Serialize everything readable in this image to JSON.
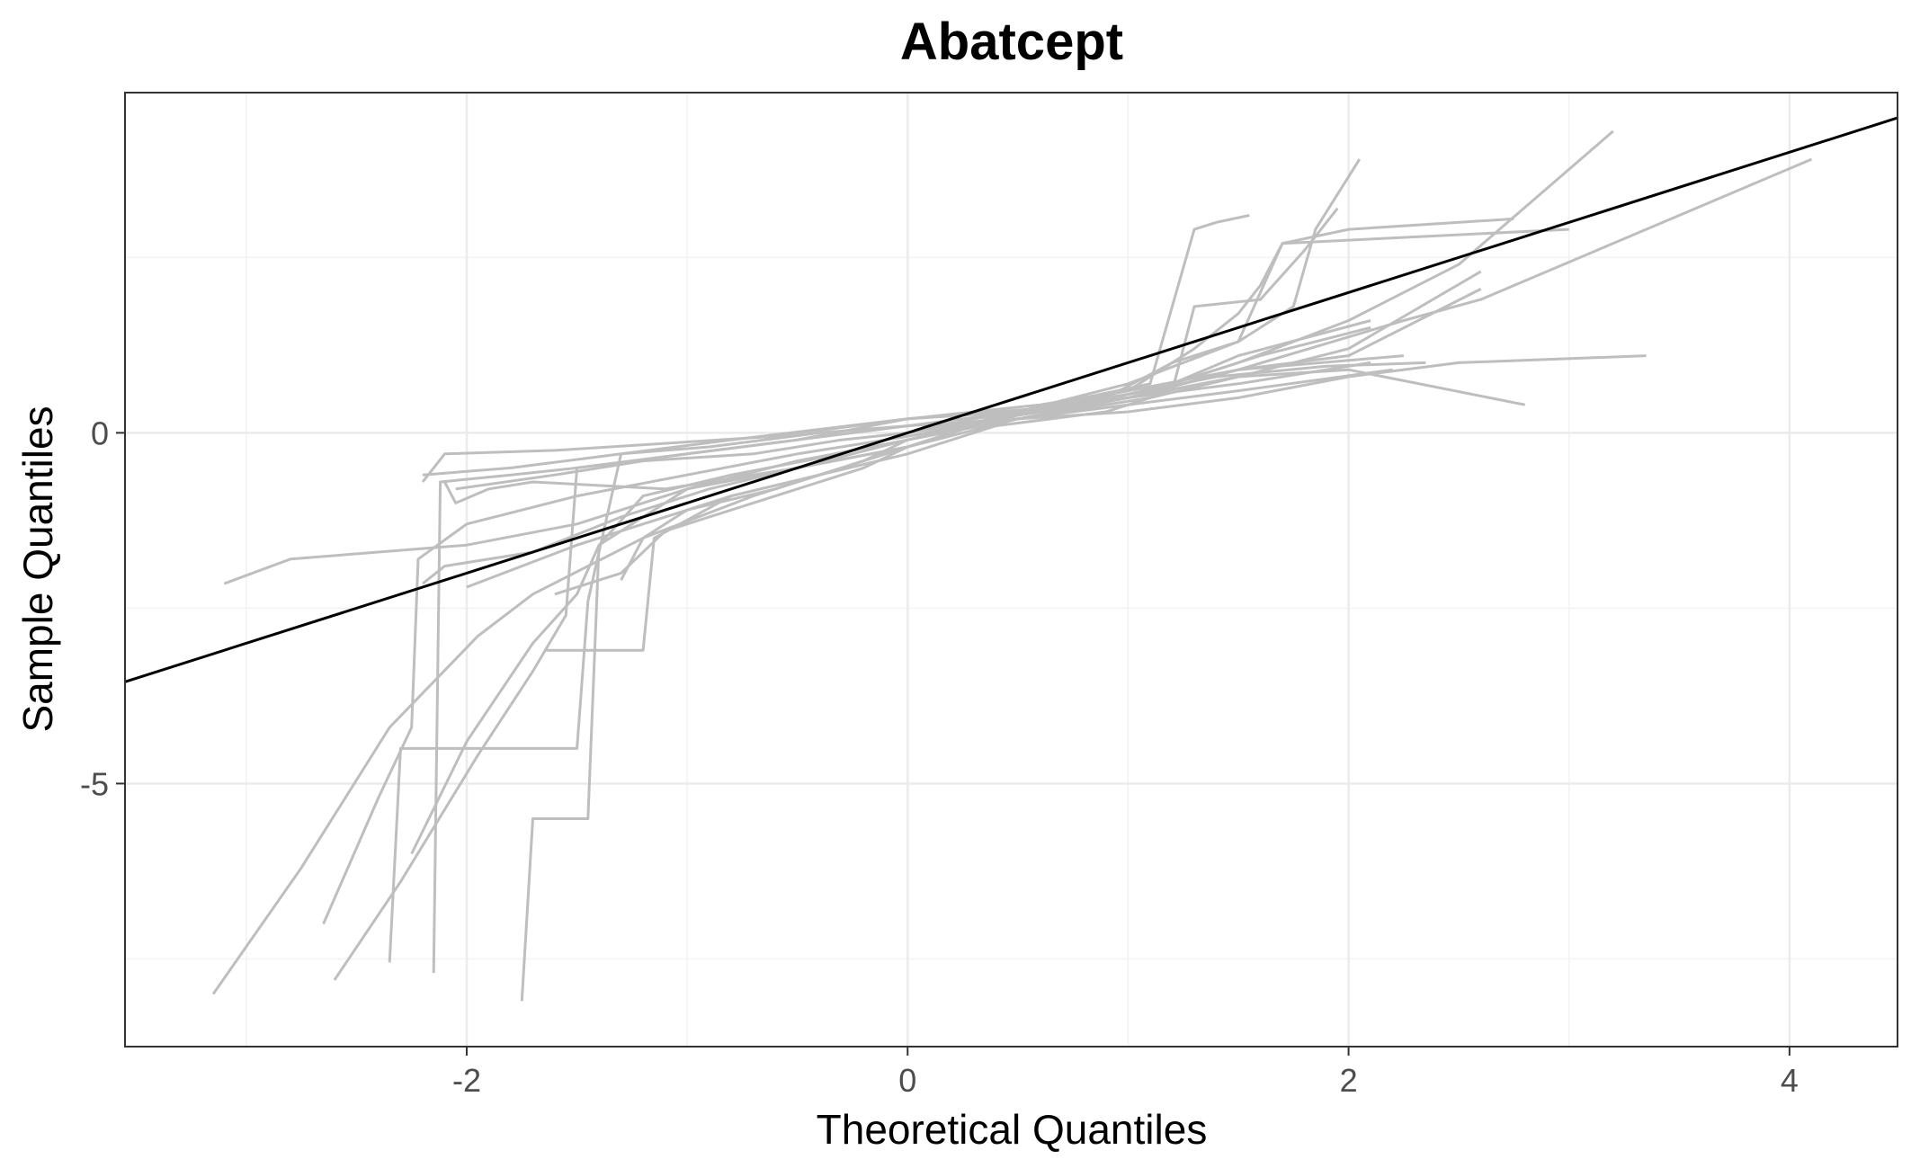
{
  "chart_data": {
    "type": "line",
    "title": "Abatcept",
    "xlabel": "Theoretical Quantiles",
    "ylabel": "Sample Quantiles",
    "xlim": [
      -3.55,
      4.49
    ],
    "ylim": [
      -8.75,
      4.85
    ],
    "x_ticks": [
      -2,
      0,
      2,
      4
    ],
    "x_tick_labels": [
      "-2",
      "0",
      "2",
      "4"
    ],
    "x_minor_ticks": [
      -3,
      -1,
      1,
      3
    ],
    "y_ticks": [
      -5,
      0
    ],
    "y_tick_labels": [
      "-5",
      "0"
    ],
    "y_minor_ticks": [
      -7.5,
      -2.5,
      2.5
    ],
    "grid": true,
    "panel_border": true,
    "reference_line": {
      "intercept": 0.0,
      "slope": 1.0,
      "color": "#000000"
    },
    "series_color": "#bebebe",
    "series": [
      {
        "values": [
          [
            -3.15,
            -8.0
          ],
          [
            -2.75,
            -6.2
          ],
          [
            -2.35,
            -4.2
          ],
          [
            -1.95,
            -2.9
          ],
          [
            -1.7,
            -2.3
          ],
          [
            -1.2,
            -1.5
          ],
          [
            -0.7,
            -0.9
          ],
          [
            -0.3,
            -0.5
          ],
          [
            0,
            -0.2
          ],
          [
            0.3,
            0.1
          ],
          [
            0.7,
            0.4
          ],
          [
            1.1,
            0.6
          ],
          [
            1.5,
            1.0
          ],
          [
            2.0,
            1.6
          ],
          [
            2.5,
            2.4
          ],
          [
            3.2,
            4.3
          ]
        ]
      },
      {
        "values": [
          [
            -2.65,
            -7.0
          ],
          [
            -2.4,
            -5.2
          ],
          [
            -2.25,
            -4.2
          ],
          [
            -2.22,
            -1.8
          ],
          [
            -2.0,
            -1.3
          ],
          [
            -1.5,
            -0.9
          ],
          [
            -1.0,
            -0.6
          ],
          [
            -0.5,
            -0.3
          ],
          [
            0,
            -0.05
          ],
          [
            0.5,
            0.25
          ],
          [
            1.0,
            0.5
          ],
          [
            1.5,
            0.8
          ],
          [
            2.0,
            1.2
          ],
          [
            2.6,
            2.3
          ]
        ]
      },
      {
        "values": [
          [
            -3.1,
            -2.15
          ],
          [
            -2.8,
            -1.8
          ],
          [
            -2.0,
            -1.6
          ],
          [
            -1.5,
            -1.3
          ],
          [
            -1.0,
            -0.8
          ],
          [
            -0.5,
            -0.4
          ],
          [
            0,
            -0.1
          ],
          [
            0.5,
            0.2
          ],
          [
            1.0,
            0.5
          ],
          [
            1.5,
            0.9
          ],
          [
            2.0,
            1.1
          ],
          [
            2.6,
            2.05
          ]
        ]
      },
      {
        "values": [
          [
            -2.6,
            -7.8
          ],
          [
            -2.3,
            -6.4
          ],
          [
            -1.95,
            -4.6
          ],
          [
            -1.7,
            -3.4
          ],
          [
            -1.55,
            -2.6
          ],
          [
            -1.5,
            -0.5
          ],
          [
            -1.0,
            -0.3
          ],
          [
            -0.5,
            -0.1
          ],
          [
            0,
            0.1
          ],
          [
            0.5,
            0.3
          ],
          [
            1.0,
            0.5
          ],
          [
            1.5,
            0.9
          ],
          [
            2.25,
            1.6
          ],
          [
            2.6,
            1.9
          ],
          [
            4.1,
            3.9
          ]
        ]
      },
      {
        "values": [
          [
            -2.25,
            -6.0
          ],
          [
            -2.0,
            -4.4
          ],
          [
            -1.7,
            -3.0
          ],
          [
            -1.5,
            -2.3
          ],
          [
            -1.4,
            -1.6
          ],
          [
            -1.0,
            -0.8
          ],
          [
            -0.5,
            -0.5
          ],
          [
            0,
            -0.2
          ],
          [
            0.5,
            0.3
          ],
          [
            1.0,
            0.7
          ],
          [
            1.5,
            1.3
          ],
          [
            1.75,
            1.8
          ],
          [
            1.85,
            2.9
          ],
          [
            2.05,
            3.9
          ]
        ]
      },
      {
        "values": [
          [
            -2.35,
            -7.55
          ],
          [
            -2.3,
            -4.5
          ],
          [
            -1.5,
            -4.5
          ],
          [
            -1.45,
            -2.4
          ],
          [
            -1.3,
            -0.3
          ],
          [
            -0.8,
            -0.1
          ],
          [
            0,
            0.2
          ],
          [
            0.5,
            0.3
          ],
          [
            1.0,
            0.5
          ],
          [
            1.5,
            0.7
          ],
          [
            2.1,
            1.0
          ]
        ]
      },
      {
        "values": [
          [
            -2.15,
            -7.7
          ],
          [
            -2.12,
            -0.7
          ],
          [
            -1.8,
            -0.6
          ],
          [
            -1.5,
            -0.5
          ],
          [
            -1.0,
            -0.3
          ],
          [
            -0.5,
            -0.1
          ],
          [
            0,
            0.2
          ],
          [
            0.6,
            0.4
          ],
          [
            1.0,
            0.6
          ],
          [
            1.5,
            0.9
          ],
          [
            2.25,
            1.1
          ]
        ]
      },
      {
        "values": [
          [
            -1.75,
            -8.1
          ],
          [
            -1.7,
            -5.5
          ],
          [
            -1.45,
            -5.5
          ],
          [
            -1.4,
            -1.6
          ],
          [
            -1.2,
            -0.9
          ],
          [
            -0.8,
            -0.6
          ],
          [
            -0.3,
            -0.3
          ],
          [
            0,
            0
          ],
          [
            0.3,
            0.2
          ],
          [
            0.8,
            0.4
          ],
          [
            1.2,
            0.7
          ],
          [
            1.5,
            1.1
          ],
          [
            2.1,
            1.6
          ]
        ]
      },
      {
        "values": [
          [
            -2.1,
            -0.7
          ],
          [
            -2.05,
            -1.0
          ],
          [
            -1.9,
            -0.8
          ],
          [
            -1.7,
            -0.7
          ],
          [
            -1.1,
            -0.8
          ],
          [
            -0.5,
            -0.5
          ],
          [
            0,
            -0.2
          ],
          [
            0.5,
            0.2
          ],
          [
            1.0,
            0.4
          ],
          [
            1.5,
            0.6
          ],
          [
            2.2,
            0.9
          ]
        ]
      },
      {
        "values": [
          [
            -1.65,
            -3.1
          ],
          [
            -1.2,
            -3.1
          ],
          [
            -1.15,
            -1.5
          ],
          [
            -0.8,
            -0.9
          ],
          [
            -0.4,
            -0.6
          ],
          [
            0,
            -0.3
          ],
          [
            0.4,
            0.1
          ],
          [
            0.9,
            0.3
          ],
          [
            1.2,
            0.6
          ],
          [
            1.3,
            1.8
          ],
          [
            1.6,
            1.9
          ],
          [
            1.8,
            2.6
          ],
          [
            1.95,
            3.2
          ]
        ]
      },
      {
        "values": [
          [
            -2.0,
            -2.2
          ],
          [
            -1.5,
            -1.6
          ],
          [
            -1.2,
            -1.3
          ],
          [
            -0.8,
            -0.9
          ],
          [
            -0.4,
            -0.6
          ],
          [
            0,
            -0.2
          ],
          [
            0.4,
            0.2
          ],
          [
            0.9,
            0.5
          ],
          [
            1.2,
            1.0
          ],
          [
            1.5,
            1.3
          ],
          [
            1.6,
            2.0
          ],
          [
            1.7,
            2.7
          ],
          [
            2.0,
            2.9
          ],
          [
            2.75,
            3.05
          ]
        ]
      },
      {
        "values": [
          [
            -2.2,
            -2.15
          ],
          [
            -2.1,
            -1.9
          ],
          [
            -1.7,
            -1.7
          ],
          [
            -1.3,
            -1.2
          ],
          [
            -0.9,
            -0.8
          ],
          [
            -0.5,
            -0.5
          ],
          [
            0,
            -0.1
          ],
          [
            0.5,
            0.3
          ],
          [
            1.0,
            0.6
          ],
          [
            1.3,
            1.2
          ],
          [
            1.5,
            1.7
          ],
          [
            1.6,
            2.1
          ],
          [
            1.7,
            2.7
          ],
          [
            3.0,
            2.9
          ]
        ]
      },
      {
        "values": [
          [
            -2.2,
            -0.6
          ],
          [
            -1.8,
            -0.5
          ],
          [
            -1.3,
            -0.3
          ],
          [
            -0.9,
            -0.2
          ],
          [
            -0.4,
            0
          ],
          [
            0,
            0.1
          ],
          [
            0.5,
            0.2
          ],
          [
            1.0,
            0.3
          ],
          [
            1.5,
            0.5
          ],
          [
            2.0,
            0.8
          ],
          [
            2.5,
            1.0
          ],
          [
            3.35,
            1.1
          ]
        ]
      },
      {
        "values": [
          [
            -1.6,
            -2.3
          ],
          [
            -1.3,
            -2.0
          ],
          [
            -1.1,
            -1.4
          ],
          [
            -0.6,
            -0.9
          ],
          [
            -0.2,
            -0.5
          ],
          [
            0,
            -0.2
          ],
          [
            0.3,
            0.1
          ],
          [
            0.7,
            0.3
          ],
          [
            1.1,
            0.5
          ],
          [
            1.5,
            0.8
          ],
          [
            2.0,
            0.9
          ],
          [
            2.8,
            0.4
          ]
        ]
      },
      {
        "values": [
          [
            -2.05,
            -0.8
          ],
          [
            -1.6,
            -0.6
          ],
          [
            -1.2,
            -0.4
          ],
          [
            -0.7,
            -0.3
          ],
          [
            -0.3,
            -0.1
          ],
          [
            0,
            0
          ],
          [
            0.4,
            0.2
          ],
          [
            0.8,
            0.4
          ],
          [
            1.2,
            0.7
          ],
          [
            1.6,
            1.1
          ],
          [
            2.1,
            1.5
          ]
        ]
      },
      {
        "values": [
          [
            -1.3,
            -2.1
          ],
          [
            -1.2,
            -1.5
          ],
          [
            -1.0,
            -1.1
          ],
          [
            -0.6,
            -0.8
          ],
          [
            -0.2,
            -0.4
          ],
          [
            0,
            -0.1
          ],
          [
            0.4,
            0.2
          ],
          [
            0.8,
            0.5
          ],
          [
            1.1,
            0.7
          ],
          [
            1.3,
            2.9
          ],
          [
            1.4,
            3.0
          ],
          [
            1.55,
            3.1
          ]
        ]
      },
      {
        "values": [
          [
            -2.2,
            -0.7
          ],
          [
            -2.1,
            -0.3
          ],
          [
            -1.6,
            -0.25
          ],
          [
            -1.1,
            -0.15
          ],
          [
            -0.6,
            -0.05
          ],
          [
            0,
            0.2
          ],
          [
            0.6,
            0.35
          ],
          [
            1.0,
            0.55
          ],
          [
            1.4,
            0.8
          ],
          [
            1.9,
            0.95
          ],
          [
            2.35,
            1.0
          ]
        ]
      }
    ]
  }
}
